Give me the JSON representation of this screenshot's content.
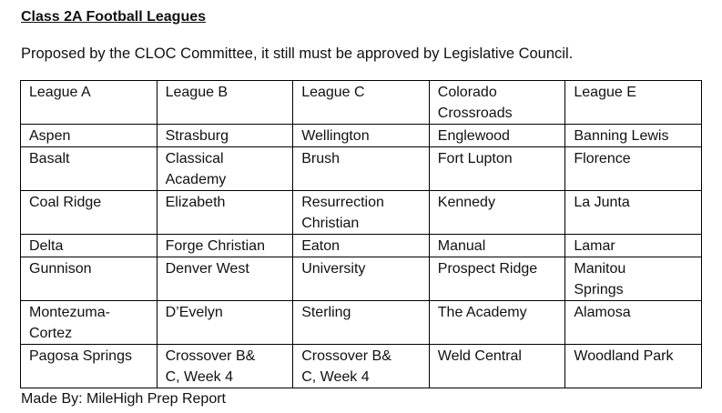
{
  "title": "Class 2A Football Leagues",
  "subtitle": "Proposed by the CLOC Committee, it still must be approved by Legislative Council.",
  "table": {
    "headers": [
      "League A",
      "League B",
      "League C",
      "Colorado\nCrossroads",
      "League E"
    ],
    "rows": [
      [
        "Aspen",
        "Strasburg",
        "Wellington",
        "Englewood",
        "Banning Lewis"
      ],
      [
        "Basalt",
        "Classical\nAcademy",
        "Brush",
        "Fort Lupton",
        "Florence"
      ],
      [
        "Coal Ridge",
        "Elizabeth",
        "Resurrection\nChristian",
        "Kennedy",
        "La Junta"
      ],
      [
        "Delta",
        "Forge Christian",
        "Eaton",
        "Manual",
        "Lamar"
      ],
      [
        "Gunnison",
        "Denver West",
        "University",
        "Prospect Ridge",
        "Manitou\nSprings"
      ],
      [
        "Montezuma-\nCortez",
        "D’Evelyn",
        "Sterling",
        "The Academy",
        "Alamosa"
      ],
      [
        "Pagosa Springs",
        "Crossover B&\nC, Week 4",
        "Crossover B&\nC, Week 4",
        "Weld Central",
        "Woodland Park"
      ]
    ]
  },
  "footer": "Made By: MileHigh Prep Report"
}
